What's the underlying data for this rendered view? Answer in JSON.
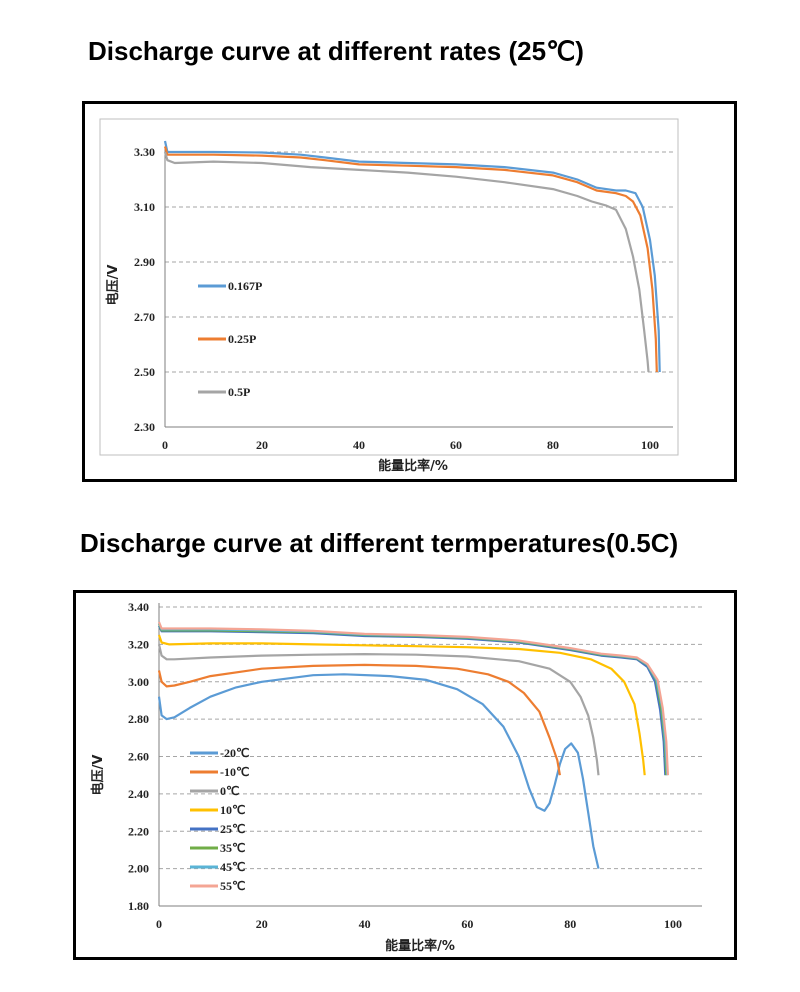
{
  "titles": {
    "chart1": "Discharge curve at different rates (25℃)",
    "chart2": "Discharge curve at different termperatures(0.5C)"
  },
  "chart_data": [
    {
      "type": "line",
      "title": "Discharge curve at different rates (25℃)",
      "xlabel": "能量比率/%",
      "ylabel": "电压/V",
      "xlim": [
        0,
        105
      ],
      "ylim": [
        2.3,
        3.35
      ],
      "xticks": [
        0,
        20,
        40,
        60,
        80,
        100
      ],
      "xtick_labels": [
        "0",
        "20",
        "40",
        "60",
        "80",
        "100"
      ],
      "yticks": [
        2.3,
        2.5,
        2.7,
        2.9,
        3.1,
        3.3
      ],
      "ytick_labels": [
        "2.30",
        "2.50",
        "2.70",
        "2.90",
        "3.10",
        "3.30"
      ],
      "grid": "horizontal-dashed",
      "legend": "left",
      "series": [
        {
          "name": "0.167P",
          "color": "#5b9bd5",
          "points": [
            [
              0,
              3.34
            ],
            [
              0.5,
              3.3
            ],
            [
              2,
              3.3
            ],
            [
              10,
              3.3
            ],
            [
              20,
              3.298
            ],
            [
              28,
              3.29
            ],
            [
              33,
              3.28
            ],
            [
              40,
              3.265
            ],
            [
              50,
              3.26
            ],
            [
              60,
              3.255
            ],
            [
              70,
              3.245
            ],
            [
              80,
              3.225
            ],
            [
              85,
              3.2
            ],
            [
              89,
              3.17
            ],
            [
              93,
              3.16
            ],
            [
              95,
              3.16
            ],
            [
              97,
              3.15
            ],
            [
              98.5,
              3.1
            ],
            [
              100,
              2.98
            ],
            [
              101,
              2.85
            ],
            [
              101.8,
              2.65
            ],
            [
              102,
              2.5
            ]
          ]
        },
        {
          "name": "0.25P",
          "color": "#ed7d31",
          "points": [
            [
              0,
              3.32
            ],
            [
              0.5,
              3.29
            ],
            [
              2,
              3.29
            ],
            [
              10,
              3.29
            ],
            [
              20,
              3.287
            ],
            [
              28,
              3.28
            ],
            [
              33,
              3.27
            ],
            [
              40,
              3.255
            ],
            [
              50,
              3.25
            ],
            [
              60,
              3.245
            ],
            [
              70,
              3.235
            ],
            [
              80,
              3.215
            ],
            [
              85,
              3.19
            ],
            [
              89,
              3.16
            ],
            [
              93,
              3.15
            ],
            [
              95,
              3.14
            ],
            [
              96.5,
              3.12
            ],
            [
              98,
              3.07
            ],
            [
              99.5,
              2.95
            ],
            [
              100.5,
              2.8
            ],
            [
              101.2,
              2.62
            ],
            [
              101.4,
              2.5
            ]
          ]
        },
        {
          "name": "0.5P",
          "color": "#a5a5a5",
          "points": [
            [
              0,
              3.3
            ],
            [
              0.5,
              3.27
            ],
            [
              2,
              3.26
            ],
            [
              10,
              3.265
            ],
            [
              20,
              3.26
            ],
            [
              30,
              3.245
            ],
            [
              40,
              3.235
            ],
            [
              50,
              3.225
            ],
            [
              60,
              3.21
            ],
            [
              70,
              3.19
            ],
            [
              80,
              3.165
            ],
            [
              85,
              3.14
            ],
            [
              88,
              3.12
            ],
            [
              91,
              3.105
            ],
            [
              93,
              3.09
            ],
            [
              95,
              3.02
            ],
            [
              96.5,
              2.92
            ],
            [
              97.8,
              2.8
            ],
            [
              98.8,
              2.65
            ],
            [
              99.5,
              2.54
            ],
            [
              99.7,
              2.5
            ]
          ]
        }
      ]
    },
    {
      "type": "line",
      "title": "Discharge curve at different termperatures(0.5C)",
      "xlabel": "能量比率/%",
      "ylabel": "电压/V",
      "xlim": [
        0,
        105
      ],
      "ylim": [
        1.8,
        3.4
      ],
      "xticks": [
        0,
        20,
        40,
        60,
        80,
        100
      ],
      "xtick_labels": [
        "0",
        "20",
        "40",
        "60",
        "80",
        "100"
      ],
      "yticks": [
        1.8,
        2.0,
        2.2,
        2.4,
        2.6,
        2.8,
        3.0,
        3.2,
        3.4
      ],
      "ytick_labels": [
        "1.80",
        "2.00",
        "2.20",
        "2.40",
        "2.60",
        "2.80",
        "3.00",
        "3.20",
        "3.40"
      ],
      "grid": "horizontal-dashed",
      "legend": "left",
      "series": [
        {
          "name": "-20℃",
          "color": "#5b9bd5",
          "points": [
            [
              0,
              2.92
            ],
            [
              0.5,
              2.82
            ],
            [
              1.5,
              2.8
            ],
            [
              3,
              2.81
            ],
            [
              6,
              2.86
            ],
            [
              10,
              2.92
            ],
            [
              15,
              2.97
            ],
            [
              20,
              3.0
            ],
            [
              30,
              3.035
            ],
            [
              36,
              3.04
            ],
            [
              45,
              3.03
            ],
            [
              52,
              3.01
            ],
            [
              58,
              2.96
            ],
            [
              63,
              2.88
            ],
            [
              67,
              2.76
            ],
            [
              70,
              2.6
            ],
            [
              72,
              2.43
            ],
            [
              73.5,
              2.33
            ],
            [
              75,
              2.31
            ],
            [
              76,
              2.35
            ],
            [
              77,
              2.45
            ],
            [
              78,
              2.56
            ],
            [
              79,
              2.64
            ],
            [
              80.2,
              2.67
            ],
            [
              81.5,
              2.62
            ],
            [
              82.5,
              2.48
            ],
            [
              83.5,
              2.3
            ],
            [
              84.5,
              2.12
            ],
            [
              85.5,
              2.0
            ]
          ]
        },
        {
          "name": "-10℃",
          "color": "#ed7d31",
          "points": [
            [
              0,
              3.06
            ],
            [
              0.5,
              3.0
            ],
            [
              1.5,
              2.975
            ],
            [
              3,
              2.98
            ],
            [
              6,
              3.0
            ],
            [
              10,
              3.03
            ],
            [
              20,
              3.07
            ],
            [
              30,
              3.085
            ],
            [
              40,
              3.09
            ],
            [
              50,
              3.085
            ],
            [
              58,
              3.07
            ],
            [
              64,
              3.04
            ],
            [
              68,
              3.0
            ],
            [
              71,
              2.94
            ],
            [
              74,
              2.84
            ],
            [
              76,
              2.7
            ],
            [
              77.5,
              2.58
            ],
            [
              78,
              2.5
            ]
          ]
        },
        {
          "name": "0℃",
          "color": "#a5a5a5",
          "points": [
            [
              0,
              3.2
            ],
            [
              0.5,
              3.14
            ],
            [
              1.5,
              3.12
            ],
            [
              3,
              3.12
            ],
            [
              10,
              3.13
            ],
            [
              20,
              3.14
            ],
            [
              30,
              3.145
            ],
            [
              40,
              3.148
            ],
            [
              50,
              3.145
            ],
            [
              60,
              3.135
            ],
            [
              70,
              3.11
            ],
            [
              76,
              3.07
            ],
            [
              80,
              3.0
            ],
            [
              82,
              2.92
            ],
            [
              83.5,
              2.82
            ],
            [
              84.5,
              2.7
            ],
            [
              85.2,
              2.58
            ],
            [
              85.5,
              2.5
            ]
          ]
        },
        {
          "name": "10℃",
          "color": "#ffc000",
          "points": [
            [
              0,
              3.25
            ],
            [
              0.5,
              3.21
            ],
            [
              2,
              3.2
            ],
            [
              10,
              3.205
            ],
            [
              20,
              3.205
            ],
            [
              30,
              3.2
            ],
            [
              40,
              3.195
            ],
            [
              50,
              3.19
            ],
            [
              60,
              3.185
            ],
            [
              70,
              3.175
            ],
            [
              78,
              3.155
            ],
            [
              84,
              3.12
            ],
            [
              88,
              3.07
            ],
            [
              90.5,
              3.0
            ],
            [
              92.5,
              2.88
            ],
            [
              93.5,
              2.72
            ],
            [
              94.2,
              2.58
            ],
            [
              94.5,
              2.5
            ]
          ]
        },
        {
          "name": "25℃",
          "color": "#4472c4",
          "points": [
            [
              0,
              3.3
            ],
            [
              0.5,
              3.27
            ],
            [
              2,
              3.27
            ],
            [
              10,
              3.27
            ],
            [
              20,
              3.265
            ],
            [
              30,
              3.26
            ],
            [
              40,
              3.245
            ],
            [
              50,
              3.24
            ],
            [
              60,
              3.23
            ],
            [
              70,
              3.21
            ],
            [
              80,
              3.17
            ],
            [
              86,
              3.14
            ],
            [
              90,
              3.13
            ],
            [
              93,
              3.12
            ],
            [
              95,
              3.08
            ],
            [
              96.5,
              3.0
            ],
            [
              97.5,
              2.85
            ],
            [
              98.2,
              2.68
            ],
            [
              98.5,
              2.5
            ]
          ]
        },
        {
          "name": "35℃",
          "color": "#70ad47",
          "points": [
            [
              0,
              3.31
            ],
            [
              0.5,
              3.275
            ],
            [
              2,
              3.275
            ],
            [
              10,
              3.275
            ],
            [
              20,
              3.27
            ],
            [
              30,
              3.265
            ],
            [
              40,
              3.25
            ],
            [
              50,
              3.245
            ],
            [
              60,
              3.235
            ],
            [
              70,
              3.215
            ],
            [
              80,
              3.175
            ],
            [
              86,
              3.145
            ],
            [
              90,
              3.135
            ],
            [
              93,
              3.125
            ],
            [
              95,
              3.09
            ],
            [
              96.7,
              3.01
            ],
            [
              97.7,
              2.86
            ],
            [
              98.4,
              2.68
            ],
            [
              98.7,
              2.5
            ]
          ]
        },
        {
          "name": "45℃",
          "color": "#5ab4d6",
          "points": [
            [
              0,
              3.315
            ],
            [
              0.5,
              3.28
            ],
            [
              2,
              3.28
            ],
            [
              10,
              3.28
            ],
            [
              20,
              3.275
            ],
            [
              30,
              3.268
            ],
            [
              40,
              3.253
            ],
            [
              50,
              3.248
            ],
            [
              60,
              3.238
            ],
            [
              70,
              3.218
            ],
            [
              80,
              3.178
            ],
            [
              86,
              3.148
            ],
            [
              90,
              3.137
            ],
            [
              93,
              3.127
            ],
            [
              95,
              3.092
            ],
            [
              96.8,
              3.01
            ],
            [
              97.9,
              2.86
            ],
            [
              98.5,
              2.68
            ],
            [
              98.9,
              2.5
            ]
          ]
        },
        {
          "name": "55℃",
          "color": "#f4a594",
          "points": [
            [
              0,
              3.32
            ],
            [
              0.5,
              3.285
            ],
            [
              2,
              3.285
            ],
            [
              10,
              3.285
            ],
            [
              20,
              3.28
            ],
            [
              30,
              3.272
            ],
            [
              40,
              3.256
            ],
            [
              50,
              3.25
            ],
            [
              60,
              3.24
            ],
            [
              70,
              3.22
            ],
            [
              80,
              3.18
            ],
            [
              86,
              3.15
            ],
            [
              90,
              3.14
            ],
            [
              93,
              3.13
            ],
            [
              95,
              3.095
            ],
            [
              97,
              3.01
            ],
            [
              98,
              2.86
            ],
            [
              98.7,
              2.68
            ],
            [
              99,
              2.5
            ]
          ]
        }
      ]
    }
  ]
}
